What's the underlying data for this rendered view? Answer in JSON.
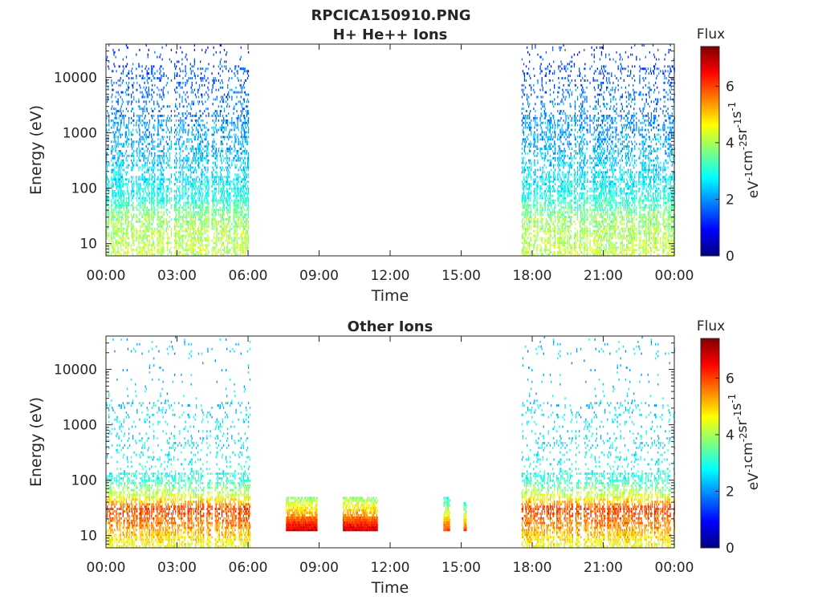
{
  "figure": {
    "title": "RPCICA150910.PNG"
  },
  "colors": {
    "colormap": [
      "#00007f",
      "#0000ff",
      "#007fff",
      "#00ffff",
      "#7fff7f",
      "#ffff00",
      "#ff7f00",
      "#ff0000",
      "#7f0000"
    ],
    "axis": "#262626"
  },
  "chart_data": [
    {
      "type": "heatmap",
      "title": "H+ He++ Ions",
      "xlabel": "Time",
      "ylabel": "Energy (eV)",
      "x_tick_labels": [
        "00:00",
        "03:00",
        "06:00",
        "09:00",
        "12:00",
        "15:00",
        "18:00",
        "21:00",
        "00:00"
      ],
      "x_range_hours": [
        0,
        24
      ],
      "y_scale": "log",
      "y_range": [
        6,
        40000
      ],
      "y_tick_labels": [
        "10",
        "100",
        "1000",
        "10000"
      ],
      "colorbar": {
        "title": "Flux",
        "unit_label": "eV-1cm-2sr-1s-1",
        "range": [
          0,
          7.4
        ],
        "tick_labels": [
          "0",
          "2",
          "4",
          "6"
        ]
      },
      "data_intervals_hours": [
        [
          0,
          1.82
        ],
        [
          1.9,
          6.1
        ],
        [
          17.55,
          24
        ]
      ],
      "flux_profile": [
        {
          "energy_eV": 6,
          "flux": 4.2
        },
        {
          "energy_eV": 15,
          "flux": 4.0
        },
        {
          "energy_eV": 30,
          "flux": 3.8
        },
        {
          "energy_eV": 60,
          "flux": 3.0
        },
        {
          "energy_eV": 150,
          "flux": 2.6
        },
        {
          "energy_eV": 500,
          "flux": 2.2
        },
        {
          "energy_eV": 2000,
          "flux": 1.9
        },
        {
          "energy_eV": 8000,
          "flux": 1.6
        },
        {
          "energy_eV": 15000,
          "flux": 1.5
        },
        {
          "energy_eV": 30000,
          "flux": 1.2
        }
      ]
    },
    {
      "type": "heatmap",
      "title": "Other Ions",
      "xlabel": "Time",
      "ylabel": "Energy (eV)",
      "x_tick_labels": [
        "00:00",
        "03:00",
        "06:00",
        "09:00",
        "12:00",
        "15:00",
        "18:00",
        "21:00",
        "00:00"
      ],
      "x_range_hours": [
        0,
        24
      ],
      "y_scale": "log",
      "y_range": [
        6,
        40000
      ],
      "y_tick_labels": [
        "10",
        "100",
        "1000",
        "10000"
      ],
      "colorbar": {
        "title": "Flux",
        "unit_label": "eV-1cm-2sr-1s-1",
        "range": [
          0,
          7.4
        ],
        "tick_labels": [
          "0",
          "2",
          "4",
          "6"
        ]
      },
      "data_intervals_hours": [
        [
          0,
          1.82
        ],
        [
          1.9,
          6.1
        ],
        [
          17.55,
          24
        ]
      ],
      "flux_profile": [
        {
          "energy_eV": 6,
          "flux": 4.5
        },
        {
          "energy_eV": 15,
          "flux": 5.5
        },
        {
          "energy_eV": 30,
          "flux": 6.0
        },
        {
          "energy_eV": 45,
          "flux": 4.5
        },
        {
          "energy_eV": 100,
          "flux": 3.0
        },
        {
          "energy_eV": 500,
          "flux": 2.6
        },
        {
          "energy_eV": 2000,
          "flux": 2.5
        },
        {
          "energy_eV": 20000,
          "flux": 2.3
        }
      ],
      "bursts": [
        {
          "t_start_hours": 7.6,
          "t_end_hours": 8.9,
          "e_min_eV": 12,
          "e_max_eV": 50,
          "peak_flux": 6.8
        },
        {
          "t_start_hours": 10.0,
          "t_end_hours": 11.45,
          "e_min_eV": 12,
          "e_max_eV": 50,
          "peak_flux": 6.8
        },
        {
          "t_start_hours": 14.25,
          "t_end_hours": 14.5,
          "e_min_eV": 12,
          "e_max_eV": 50,
          "peak_flux": 6.0
        },
        {
          "t_start_hours": 15.1,
          "t_end_hours": 15.2,
          "e_min_eV": 12,
          "e_max_eV": 40,
          "peak_flux": 6.0
        }
      ]
    }
  ]
}
